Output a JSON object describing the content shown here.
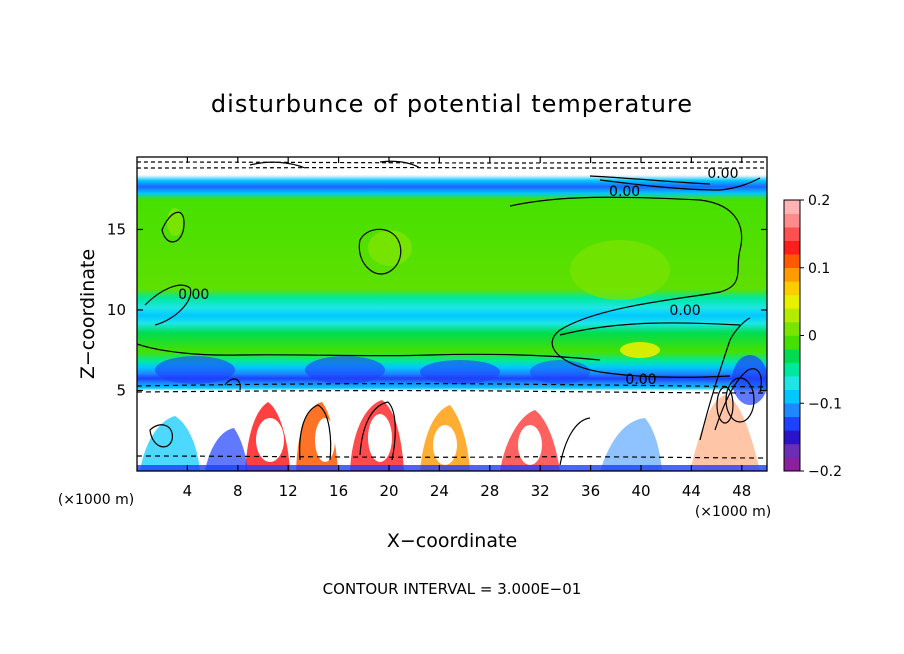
{
  "chart_data": {
    "type": "heatmap",
    "title": "disturbunce of potential temperature",
    "xlabel": "X−coordinate",
    "ylabel": "Z−coordinate",
    "x_unit_left": "(×1000 m)",
    "x_unit_right": "(×1000 m)",
    "footer": "CONTOUR INTERVAL = 3.000E−01",
    "xlim": [
      0,
      50
    ],
    "ylim": [
      0,
      19.5
    ],
    "x_ticks": [
      "4",
      "8",
      "12",
      "16",
      "20",
      "24",
      "28",
      "32",
      "36",
      "40",
      "44",
      "48"
    ],
    "x_tick_values": [
      4,
      8,
      12,
      16,
      20,
      24,
      28,
      32,
      36,
      40,
      44,
      48
    ],
    "y_ticks": [
      "5",
      "10",
      "15"
    ],
    "y_tick_values": [
      5,
      10,
      15
    ],
    "contour_labels": [
      {
        "text": "0.00",
        "x": 38.7,
        "y": 17.4
      },
      {
        "text": "0.00",
        "x": 46.5,
        "y": 18.5
      },
      {
        "text": "0.00",
        "x": 4.5,
        "y": 11.0
      },
      {
        "text": "0.00",
        "x": 43.5,
        "y": 10.0
      },
      {
        "text": "0.00",
        "x": 40.0,
        "y": 5.7
      }
    ],
    "colorbar": {
      "min": -0.2,
      "max": 0.2,
      "tick_labels": [
        "0.2",
        "0.1",
        "0",
        "−0.1",
        "−0.2"
      ],
      "tick_values": [
        0.2,
        0.1,
        0,
        -0.1,
        -0.2
      ],
      "colors": [
        "#8b1f9e",
        "#6a2db3",
        "#2a14c8",
        "#1e40ff",
        "#1e88ff",
        "#00c8ff",
        "#1ee6e6",
        "#00e8a0",
        "#00dc50",
        "#46e000",
        "#78e400",
        "#b4ec00",
        "#e6f000",
        "#ffcc00",
        "#ff9a00",
        "#ff5a00",
        "#ff1e1e",
        "#ff5050",
        "#ff8c8c",
        "#ffb4b4"
      ]
    },
    "field_description_bands": [
      {
        "z_from": 19.0,
        "z_to": 19.5,
        "value": "masked"
      },
      {
        "z_from": 18.4,
        "z_to": 19.0,
        "value": -0.14
      },
      {
        "z_from": 17.8,
        "z_to": 18.4,
        "value": -0.09
      },
      {
        "z_from": 17.0,
        "z_to": 17.8,
        "value": 0.01
      },
      {
        "z_from": 11.0,
        "z_to": 17.0,
        "value": 0.02
      },
      {
        "z_from": 9.5,
        "z_to": 11.0,
        "value": -0.06
      },
      {
        "z_from": 7.5,
        "z_to": 9.5,
        "value": 0.0
      },
      {
        "z_from": 5.5,
        "z_to": 7.5,
        "value": -0.12
      },
      {
        "z_from": 0.0,
        "z_to": 5.5,
        "value": "mixed"
      }
    ]
  }
}
